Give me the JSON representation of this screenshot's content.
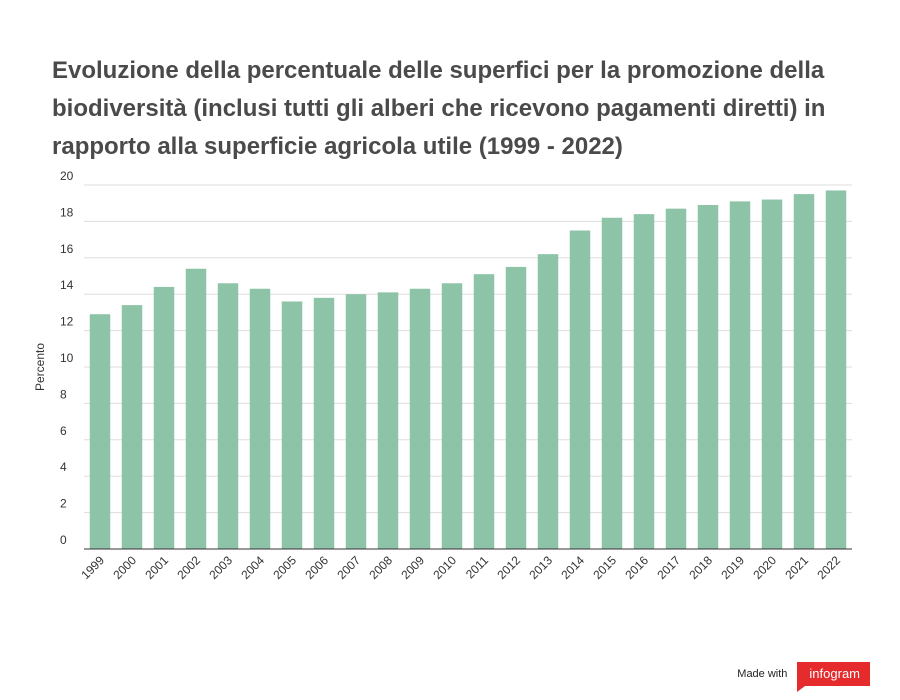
{
  "chart_data": {
    "type": "bar",
    "title": "Evoluzione della percentuale delle superfici per la promozione della biodiversità (inclusi tutti gli alberi che ricevono pagamenti diretti) in rapporto alla superficie agricola utile (1999 - 2022)",
    "xlabel": "",
    "ylabel": "Percento",
    "ylim": [
      0,
      20
    ],
    "yticks": [
      0,
      2,
      4,
      6,
      8,
      10,
      12,
      14,
      16,
      18,
      20
    ],
    "grid": true,
    "bar_color": "#8dc3a7",
    "categories": [
      "1999",
      "2000",
      "2001",
      "2002",
      "2003",
      "2004",
      "2005",
      "2006",
      "2007",
      "2008",
      "2009",
      "2010",
      "2011",
      "2012",
      "2013",
      "2014",
      "2015",
      "2016",
      "2017",
      "2018",
      "2019",
      "2020",
      "2021",
      "2022"
    ],
    "values": [
      12.9,
      13.4,
      14.4,
      15.4,
      14.6,
      14.3,
      13.6,
      13.8,
      14.0,
      14.1,
      14.3,
      14.6,
      15.1,
      15.5,
      16.2,
      17.5,
      18.2,
      18.4,
      18.7,
      18.9,
      19.1,
      19.2,
      19.5,
      19.7
    ]
  },
  "footer": {
    "made_with": "Made with",
    "brand": "infogram"
  }
}
